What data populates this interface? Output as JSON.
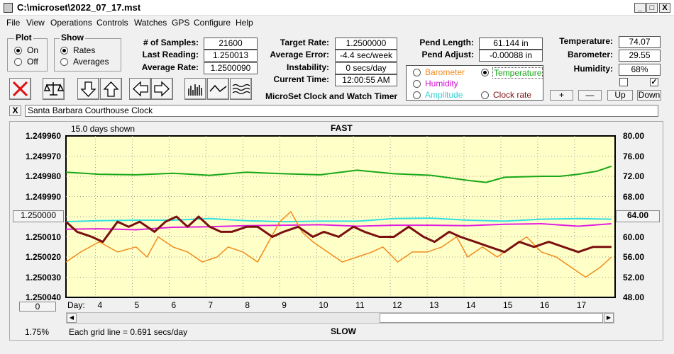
{
  "window": {
    "title": "C:\\microset\\2022_07_17.mst",
    "min": "_",
    "max": "□",
    "close": "X"
  },
  "menu": [
    "File",
    "View",
    "Operations",
    "Controls",
    "Watches",
    "GPS",
    "Configure",
    "Help"
  ],
  "plot_group": {
    "title": "Plot",
    "on": "On",
    "off": "Off"
  },
  "show_group": {
    "title": "Show",
    "rates": "Rates",
    "averages": "Averages"
  },
  "stats": {
    "samples_label": "# of Samples:",
    "samples_value": "21600",
    "last_label": "Last Reading:",
    "last_value": "1.250013",
    "avg_label": "Average Rate:",
    "avg_value": "1.2500090"
  },
  "targets": {
    "target_label": "Target Rate:",
    "target_value": "1.2500000",
    "error_label": "Average Error:",
    "error_value": "-4.4 sec/week",
    "instab_label": "Instability:",
    "instab_value": "0 secs/day",
    "time_label": "Current Time:",
    "time_value": "12:00:55 AM"
  },
  "pend": {
    "length_label": "Pend Length:",
    "length_value": "61.144 in",
    "adjust_label": "Pend Adjust:",
    "adjust_value": "-0.00088 in"
  },
  "env": {
    "temp_label": "Temperature:",
    "temp_value": "74.07",
    "baro_label": "Barometer:",
    "baro_value": "29.55",
    "hum_label": "Humidity:",
    "hum_value": "68%"
  },
  "app_name": "MicroSet Clock and Watch Timer",
  "sources": {
    "barometer": "Barometer",
    "temperature": "Temperature",
    "humidity": "Humidity",
    "amplitude": "Amplitude",
    "clock_rate": "Clock rate"
  },
  "colors": {
    "barometer": "#f28a1c",
    "temperature": "#18a818",
    "humidity": "#e020e0",
    "amplitude": "#30e0e0",
    "clock": "#7a1010",
    "plot_bg": "#ffffc8"
  },
  "adjust_buttons": {
    "plus": "+",
    "minus": "—",
    "up": "Up",
    "down": "Down"
  },
  "clock_name": "Santa Barbara Courthouse Clock",
  "close_x": "X",
  "graph": {
    "days_shown": "15.0 days shown",
    "fast": "FAST",
    "slow": "SLOW",
    "grid_note": "Each grid line = 0.691 secs/day",
    "percent": "1.75%",
    "day_label": "Day:",
    "left_btn": "1.250000",
    "right_btn": "64.00",
    "zero_btn": "0"
  },
  "chart_data": {
    "type": "line",
    "left_axis": [
      "1.249960",
      "1.249970",
      "1.249980",
      "1.249990",
      "",
      "1.250010",
      "1.250020",
      "1.250030",
      "1.250040"
    ],
    "right_axis": [
      "80.00",
      "76.00",
      "72.00",
      "68.00",
      "64.00",
      "60.00",
      "56.00",
      "52.00",
      "48.00"
    ],
    "x_ticks": [
      "4",
      "5",
      "6",
      "7",
      "8",
      "9",
      "10",
      "11",
      "12",
      "13",
      "14",
      "15",
      "16",
      "17"
    ],
    "xlim": [
      3.1,
      18.0
    ],
    "right_ylim": [
      48,
      80
    ],
    "series": [
      {
        "name": "Temperature",
        "x": [
          3.1,
          4,
          5,
          6,
          7,
          8,
          9,
          10,
          11,
          12,
          13,
          14,
          14.5,
          15,
          16,
          16.5,
          17,
          17.5,
          17.9
        ],
        "y": [
          72.8,
          72.4,
          72.3,
          72.6,
          72.2,
          72.8,
          72.5,
          72.3,
          73.2,
          72.5,
          72.2,
          71.2,
          70.8,
          71.8,
          72.0,
          72.0,
          72.4,
          73.0,
          74.0
        ]
      },
      {
        "name": "Humidity",
        "x": [
          3.1,
          4,
          5,
          6,
          7,
          8,
          9,
          10,
          11,
          12,
          13,
          14,
          15,
          16,
          17,
          17.9
        ],
        "y": [
          61.5,
          61.6,
          61.4,
          61.9,
          62.0,
          62.2,
          62.3,
          62.4,
          62.1,
          62.3,
          62.3,
          62.2,
          62.5,
          62.6,
          62.1,
          62.6
        ]
      },
      {
        "name": "Amplitude",
        "x": [
          3.1,
          4,
          5,
          6,
          7,
          8,
          9,
          10,
          11,
          12,
          13,
          14,
          15,
          16,
          17,
          17.9
        ],
        "y": [
          63.0,
          63.2,
          63.3,
          63.3,
          63.6,
          63.2,
          63.0,
          63.1,
          63.1,
          63.6,
          63.7,
          63.3,
          63.1,
          63.5,
          63.6,
          63.5
        ]
      },
      {
        "name": "Barometer",
        "x": [
          3.1,
          3.5,
          4,
          4.5,
          5,
          5.3,
          5.6,
          6,
          6.4,
          6.8,
          7.2,
          7.5,
          7.9,
          8.3,
          8.6,
          8.9,
          9.2,
          9.5,
          9.8,
          10.2,
          10.6,
          11,
          11.4,
          11.7,
          12.1,
          12.5,
          12.9,
          13.3,
          13.7,
          14,
          14.4,
          14.8,
          15.2,
          15.6,
          16,
          16.4,
          16.8,
          17.2,
          17.6,
          17.9
        ],
        "y": [
          55,
          57,
          59,
          57,
          58,
          56,
          60,
          58,
          57,
          55,
          56,
          58,
          57,
          55,
          59,
          63,
          65,
          61,
          59,
          57,
          55,
          56,
          57,
          58,
          55,
          57,
          57,
          58,
          60,
          56,
          58,
          56,
          58,
          60,
          57,
          56,
          54,
          52,
          54,
          56
        ]
      },
      {
        "name": "Clock rate",
        "x": [
          3.1,
          3.4,
          3.8,
          4.1,
          4.5,
          4.8,
          5.1,
          5.5,
          5.8,
          6.1,
          6.4,
          6.7,
          7.0,
          7.3,
          7.6,
          8.0,
          8.3,
          8.7,
          9.0,
          9.4,
          9.8,
          10.1,
          10.5,
          10.9,
          11.2,
          11.6,
          12.0,
          12.4,
          12.8,
          13.1,
          13.5,
          13.8,
          14.2,
          14.6,
          15.0,
          15.4,
          15.8,
          16.2,
          16.6,
          17.0,
          17.4,
          17.9
        ],
        "y": [
          63,
          61,
          60,
          59,
          63,
          62,
          63,
          61,
          63,
          64,
          62,
          64,
          62,
          61,
          61,
          62,
          62,
          60,
          61,
          62,
          60,
          61,
          60,
          62,
          61,
          60,
          60,
          62,
          60,
          59,
          61,
          60,
          59,
          58,
          57,
          59,
          58,
          59,
          58,
          57,
          58,
          58
        ]
      }
    ]
  }
}
